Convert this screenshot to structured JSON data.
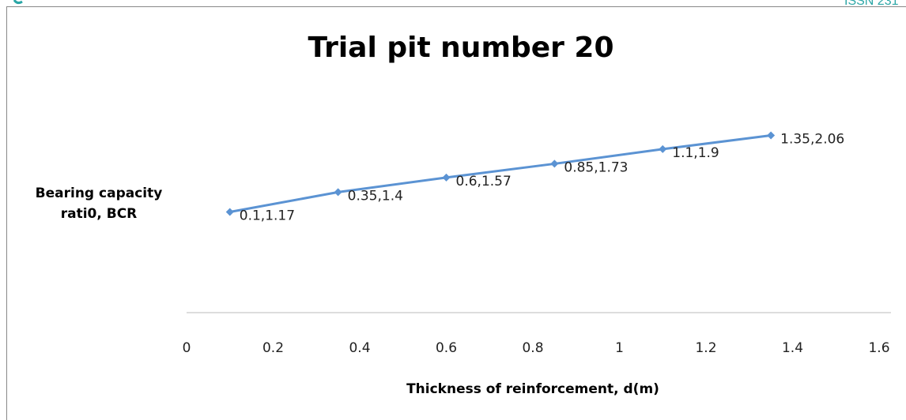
{
  "header": {
    "issn": "ISSN 231"
  },
  "chart_data": {
    "type": "line",
    "title": "Trial pit number 20",
    "x_label": "Thickness of reinforcement, d(m)",
    "y_label": "Bearing capacity rati0, BCR",
    "x": [
      0.1,
      0.35,
      0.6,
      0.85,
      1.1,
      1.35
    ],
    "series": [
      {
        "name": "BCR",
        "color": "#5b93d3",
        "values": [
          1.17,
          1.4,
          1.57,
          1.73,
          1.9,
          2.06
        ],
        "value_labels": [
          "0.1,1.17",
          "0.35,1.4",
          "0.6,1.57",
          "0.85,1.73",
          "1.1,1.9",
          "1.35,2.06"
        ]
      }
    ],
    "xlim": [
      0,
      1.6
    ],
    "xticks": [
      0,
      0.2,
      0.4,
      0.6,
      0.8,
      1,
      1.2,
      1.4,
      1.6
    ],
    "ylim": [
      0,
      2.5
    ],
    "grid": false,
    "legend": false
  }
}
